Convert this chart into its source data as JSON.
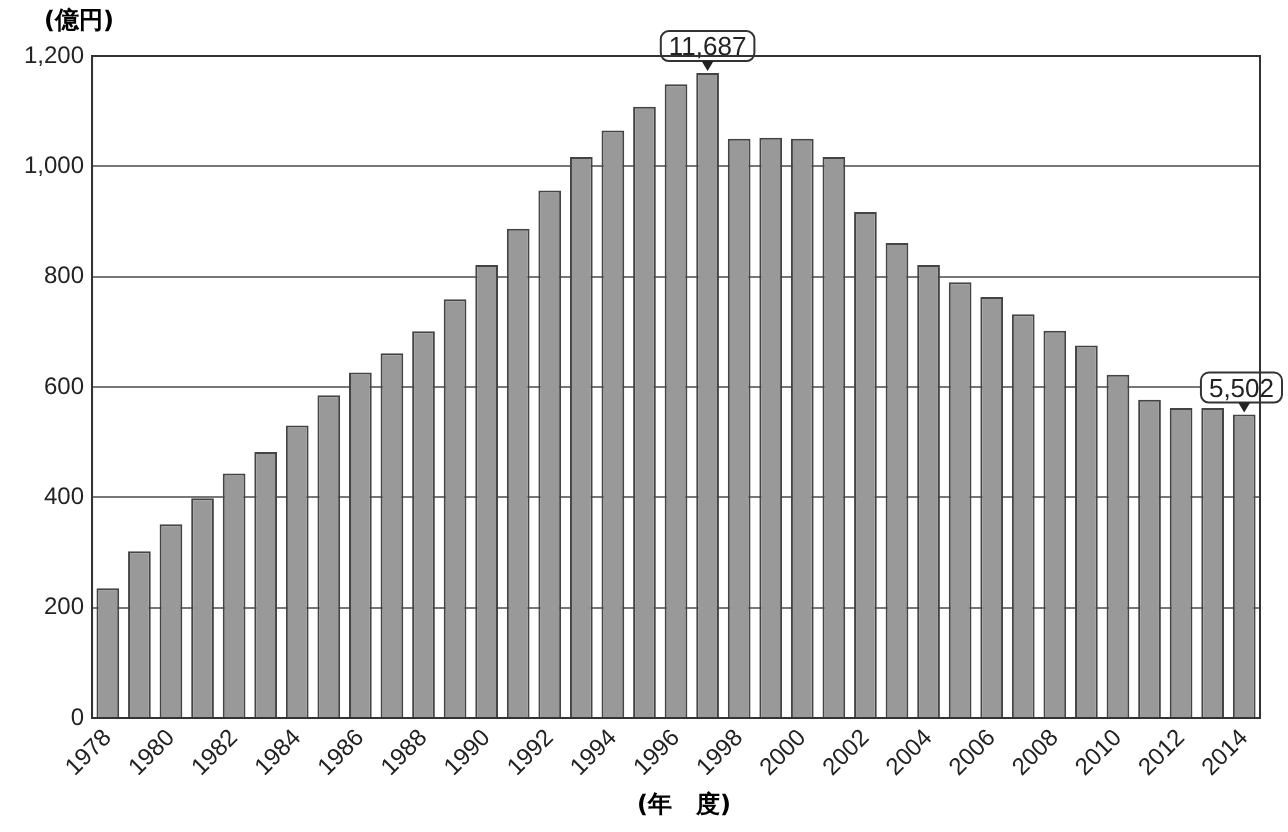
{
  "chart_data": {
    "type": "bar",
    "ylabel": "(億円)",
    "xlabel": "(年　度)",
    "categories": [
      "1978",
      null,
      "1980",
      null,
      "1982",
      null,
      "1984",
      null,
      "1986",
      null,
      "1988",
      null,
      "1990",
      null,
      "1992",
      null,
      "1994",
      null,
      "1996",
      null,
      "1998",
      null,
      "2000",
      null,
      "2002",
      null,
      "2004",
      null,
      "2006",
      null,
      "2008",
      null,
      "2010",
      null,
      "2012",
      null,
      "2014"
    ],
    "values": [
      235,
      302,
      351,
      398,
      443,
      482,
      530,
      585,
      626,
      661,
      701,
      759,
      821,
      887,
      956,
      1017,
      1065,
      1108,
      1149,
      1169,
      1050,
      1052,
      1050,
      1017,
      917,
      861,
      821,
      790,
      763,
      732,
      702,
      675,
      622,
      577,
      562,
      562,
      550
    ],
    "color": "#999999",
    "ylim": [
      0,
      1200
    ],
    "yticks": [
      0,
      {
        "value": 200,
        "label": "200"
      },
      {
        "value": 400,
        "label": "400"
      },
      {
        "value": 600,
        "label": "600"
      },
      {
        "value": 800,
        "label": "800"
      },
      {
        "value": 1000,
        "label": "1,000"
      },
      {
        "value": 1200,
        "label": "1,200"
      }
    ],
    "grid": "y",
    "annotations": [
      {
        "text": "11,687",
        "y": 1169
      },
      {
        "text": "5,502",
        "y": 550
      }
    ]
  }
}
